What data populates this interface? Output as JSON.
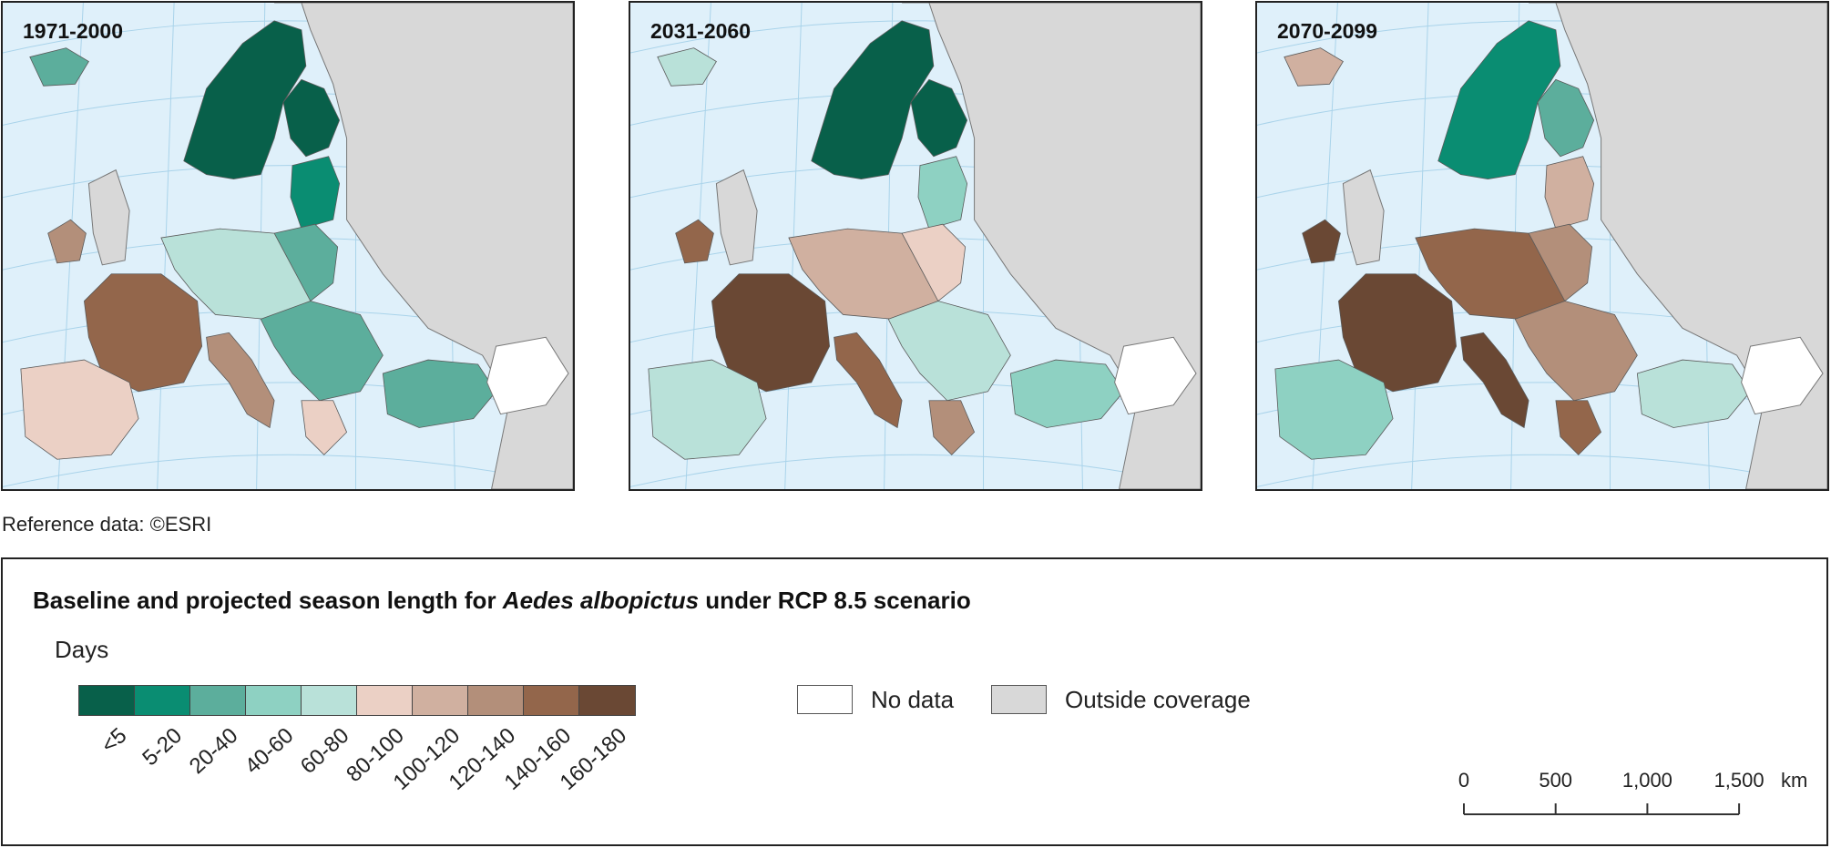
{
  "maps": [
    {
      "period": "1971-2000"
    },
    {
      "period": "2031-2060"
    },
    {
      "period": "2070-2099"
    }
  ],
  "reference_note": "Reference data: ©ESRI",
  "legend": {
    "title_prefix": "Baseline and projected season length for ",
    "title_species": "Aedes albopictus",
    "title_suffix": " under RCP 8.5 scenario",
    "units": "Days",
    "classes": [
      {
        "label": "<5",
        "color": "#08604a"
      },
      {
        "label": "5-20",
        "color": "#0a8d72"
      },
      {
        "label": "20-40",
        "color": "#5cae9c"
      },
      {
        "label": "40-60",
        "color": "#8ed1c2"
      },
      {
        "label": "60-80",
        "color": "#b9e1d9"
      },
      {
        "label": "80-100",
        "color": "#ebd0c5"
      },
      {
        "label": "100-120",
        "color": "#d0b0a0"
      },
      {
        "label": "120-140",
        "color": "#b38f7a"
      },
      {
        "label": "140-160",
        "color": "#93664b"
      },
      {
        "label": "160-180",
        "color": "#6a4834"
      }
    ],
    "no_data": {
      "label": "No data",
      "color": "#ffffff"
    },
    "outside": {
      "label": "Outside coverage",
      "color": "#d8d8d8"
    }
  },
  "scale_bar": {
    "ticks": [
      "0",
      "500",
      "1,000",
      "1,500"
    ],
    "unit": "km"
  }
}
